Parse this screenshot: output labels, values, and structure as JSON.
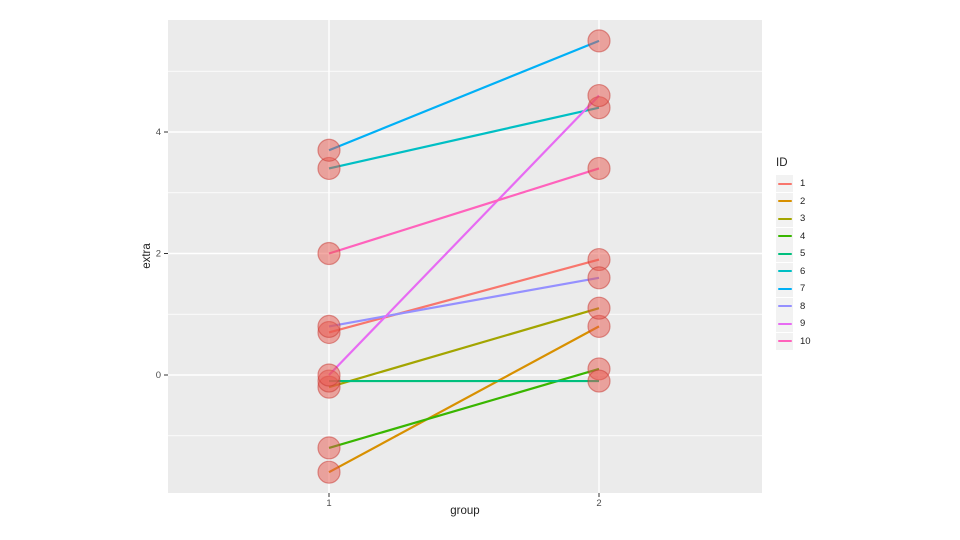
{
  "chart_data": {
    "type": "line",
    "title": "",
    "xlabel": "group",
    "ylabel": "extra",
    "x_categories": [
      "1",
      "2"
    ],
    "x_tick_values": [
      1,
      2
    ],
    "y_tick_labels": [
      "0",
      "2",
      "4"
    ],
    "y_major_ticks": [
      0,
      2,
      4
    ],
    "y_minor_ticks": [
      -1,
      1,
      3,
      5
    ],
    "ylim": [
      -1.96,
      5.86
    ],
    "xlim": [
      0.4,
      2.6
    ],
    "grid": "on",
    "legend": {
      "title": "ID",
      "position": "right"
    },
    "series": [
      {
        "id": "1",
        "color": "#F8766D",
        "values": [
          0.7,
          1.9
        ]
      },
      {
        "id": "2",
        "color": "#D89000",
        "values": [
          -1.6,
          0.8
        ]
      },
      {
        "id": "3",
        "color": "#A3A500",
        "values": [
          -0.2,
          1.1
        ]
      },
      {
        "id": "4",
        "color": "#39B600",
        "values": [
          -1.2,
          0.1
        ]
      },
      {
        "id": "5",
        "color": "#00BF7D",
        "values": [
          -0.1,
          -0.1
        ]
      },
      {
        "id": "6",
        "color": "#00BFC4",
        "values": [
          3.4,
          4.4
        ]
      },
      {
        "id": "7",
        "color": "#00B0F6",
        "values": [
          3.7,
          5.5
        ]
      },
      {
        "id": "8",
        "color": "#9590FF",
        "values": [
          0.8,
          1.6
        ]
      },
      {
        "id": "9",
        "color": "#E76BF3",
        "values": [
          0.0,
          4.6
        ]
      },
      {
        "id": "10",
        "color": "#FF62BC",
        "values": [
          2.0,
          3.4
        ]
      }
    ],
    "style": {
      "panel_bg": "#EBEBEB",
      "grid_major": "#FFFFFF",
      "grid_minor": "#FFFFFF",
      "point_fill": "#E7584D",
      "point_fill_opacity": 0.5,
      "point_stroke": "#C83732",
      "point_stroke_opacity": 0.5,
      "point_radius": 11,
      "line_width": 2.2,
      "axis_text_color": "#4D4D4D",
      "title_color": "#1f1f1f",
      "tick_color": "#333333",
      "legend_key_bg": "#F2F2F2"
    }
  }
}
